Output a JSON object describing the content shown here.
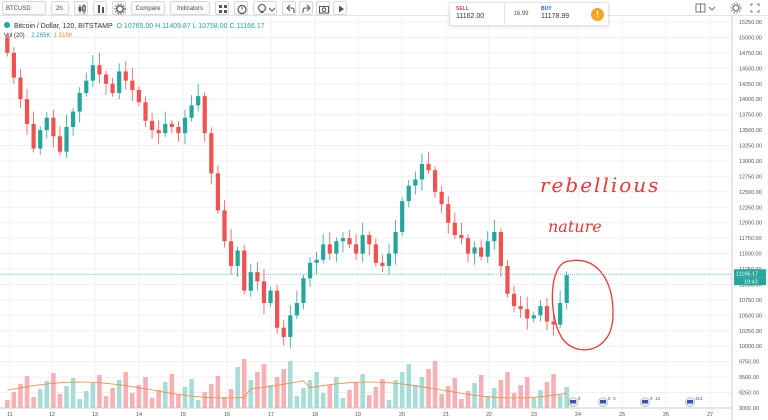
{
  "toolbar": {
    "symbol": "BTCUSD",
    "interval": "2h",
    "compare_label": "Compare",
    "indicators_label": "Indicators"
  },
  "legend": {
    "title": "Bitcoin / Dollar, 120, BITSTAMP",
    "open": "O 10765.00",
    "high": "H 11409.87",
    "low": "L 10758.00",
    "close": "C 11166.17"
  },
  "volume_legend": {
    "label": "Vol (20)",
    "vol": "2.265K",
    "ma": "1.515K"
  },
  "order_panel": {
    "sell_label": "SELL",
    "sell_price": "11162.00",
    "spread": "16.99",
    "buy_label": "BUY",
    "buy_price": "11178.99",
    "info_icon": "!"
  },
  "price_tags": {
    "last_price": "11166.17",
    "countdown": "19:43"
  },
  "annotations": {
    "word1": "rebellious",
    "word2": "nature"
  },
  "event_badges": [
    "8",
    "5",
    "3",
    "8",
    "12",
    "41",
    "3"
  ],
  "colors": {
    "up": "#26a69a",
    "down": "#ef5350",
    "vol_up": "#a8dcd6",
    "vol_down": "#f6b1b4",
    "ma_line": "#ef8d3e",
    "annotation": "#e53935"
  },
  "chart_data": {
    "type": "candlestick",
    "y_ticks": [
      "15250.00",
      "15000.00",
      "14750.00",
      "14500.00",
      "14250.00",
      "14000.00",
      "13750.00",
      "13500.00",
      "13250.00",
      "13000.00",
      "12750.00",
      "12500.00",
      "12250.00",
      "12000.00",
      "11750.00",
      "11500.00",
      "11250.00",
      "11000.00",
      "10750.00",
      "10500.00",
      "10250.00",
      "10000.00",
      "9750.00",
      "9500.00",
      "9250.00",
      "9000.00"
    ],
    "x_ticks": [
      "11",
      "12",
      "13",
      "14",
      "15",
      "16",
      "17",
      "18",
      "19",
      "20",
      "21",
      "22",
      "23",
      "24",
      "25",
      "26",
      "27"
    ],
    "ylim": [
      9000,
      15250
    ],
    "close_series": [
      14750,
      14350,
      14000,
      13600,
      13200,
      13500,
      13700,
      13400,
      13150,
      13550,
      13800,
      14100,
      14300,
      14550,
      14400,
      14250,
      14100,
      14450,
      14300,
      14150,
      13950,
      13650,
      13500,
      13450,
      13600,
      13550,
      13450,
      13700,
      13900,
      14050,
      13450,
      12800,
      12200,
      11700,
      11300,
      11550,
      10900,
      11200,
      11050,
      10700,
      10900,
      10300,
      10150,
      10500,
      10700,
      11100,
      11350,
      11400,
      11650,
      11500,
      11700,
      11750,
      11650,
      11500,
      11800,
      11650,
      11350,
      11300,
      11500,
      11850,
      12350,
      12600,
      12700,
      12950,
      12850,
      12500,
      12300,
      12000,
      11800,
      11750,
      11500,
      11600,
      11450,
      11700,
      11850,
      11300,
      10850,
      10650,
      10600,
      10450,
      10500,
      10650,
      10400,
      10350,
      10700,
      11150
    ]
  }
}
